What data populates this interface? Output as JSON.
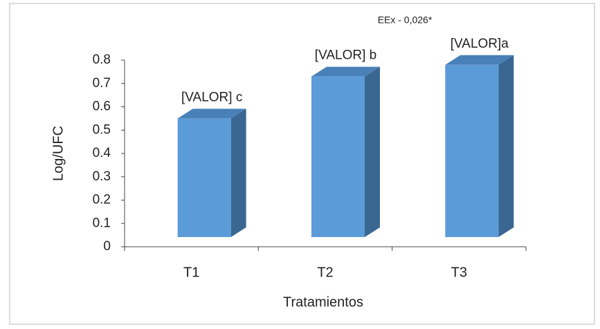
{
  "chart_data": {
    "type": "bar3d",
    "annotation": "EEx - 0,026*",
    "x_label": "Tratamientos",
    "y_label": "Log/UFC",
    "categories": [
      "T1",
      "T2",
      "T3"
    ],
    "values": [
      0.55,
      0.73,
      0.78
    ],
    "value_labels": [
      "[VALOR] c",
      "[VALOR] b",
      "[VALOR]a"
    ],
    "color": "#5b9bd8",
    "ylim": [
      0,
      0.8
    ],
    "yticks": [
      0,
      0.1,
      0.2,
      0.3,
      0.4,
      0.5,
      0.6,
      0.7,
      0.8
    ]
  }
}
